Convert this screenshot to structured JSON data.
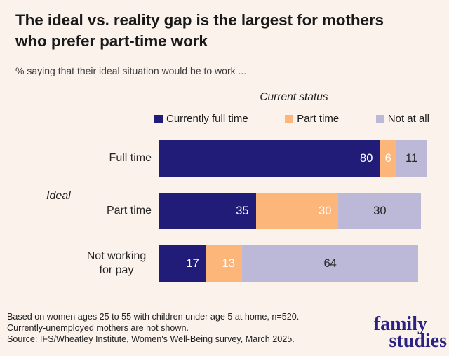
{
  "header": {
    "title_line1": "The ideal vs. reality gap is the largest for mothers",
    "title_line2": "who prefer part-time work",
    "subtitle": "% saying that their ideal situation would be to work ..."
  },
  "chart_data": {
    "type": "bar",
    "stacked": true,
    "orientation": "horizontal",
    "title": "The ideal vs. reality gap is the largest for mothers who prefer part-time work",
    "subtitle": "% saying that their ideal situation would be to work ...",
    "legend_title": "Current status",
    "legend_position": "top",
    "category_axis_label": "Ideal",
    "categories": [
      "Full time",
      "Part time",
      "Not working for pay"
    ],
    "series": [
      {
        "name": "Currently full time",
        "color": "#211c78",
        "label_color": "#ffffff",
        "values": [
          80,
          35,
          17
        ]
      },
      {
        "name": "Part time",
        "color": "#fdb679",
        "label_color": "#ffffff",
        "values": [
          6,
          30,
          13
        ]
      },
      {
        "name": "Not at all",
        "color": "#bcb9d8",
        "label_color": "#262626",
        "values": [
          11,
          30,
          64
        ]
      }
    ],
    "value_axis_range": [
      0,
      100
    ],
    "grid": false
  },
  "footer": {
    "note1": "Based on women ages 25 to 55 with children under age 5 at home, n=520.",
    "note2": "Currently-unemployed mothers are not shown.",
    "source": "Source: IFS/Wheatley Institute, Women's Well-Being survey, March 2025.",
    "logo_line1": "family",
    "logo_line2": "studies"
  },
  "colors": {
    "background": "#fcf2ec",
    "logo_navy": "#2a2383",
    "title_text": "#191919"
  }
}
